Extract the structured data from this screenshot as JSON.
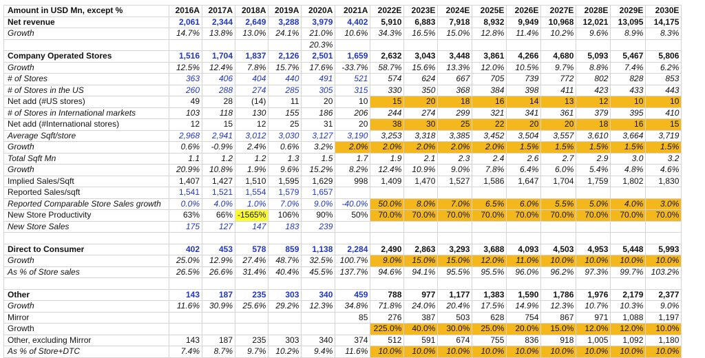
{
  "colors": {
    "estimate_fill": "#f5b81c",
    "highlight": "#ffff2e",
    "input_blue": "#1f36c8"
  },
  "header": [
    "Amount in USD Mn, except %",
    "2016A",
    "2017A",
    "2018A",
    "2019A",
    "2020A",
    "2021A",
    "2022E",
    "2023E",
    "2024E",
    "2025E",
    "2026E",
    "2027E",
    "2028E",
    "2029E",
    "2030E"
  ],
  "rows": [
    {
      "style": "bold",
      "label": "Net revenue",
      "values": [
        "2,061",
        "2,344",
        "2,649",
        "3,288",
        "3,979",
        "4,402",
        "5,910",
        "6,883",
        "7,918",
        "8,932",
        "9,949",
        "10,968",
        "12,021",
        "13,095",
        "14,175"
      ],
      "blue": [
        0,
        1,
        2,
        3,
        4,
        5
      ],
      "fill": []
    },
    {
      "style": "it",
      "label": "Growth",
      "values": [
        "14.7%",
        "13.8%",
        "13.0%",
        "24.1%",
        "21.0%",
        "10.6%",
        "34.3%",
        "16.5%",
        "15.0%",
        "12.8%",
        "11.4%",
        "10.2%",
        "9.6%",
        "8.9%",
        "8.3%"
      ],
      "blue": [],
      "fill": []
    },
    {
      "style": "it",
      "label": "",
      "values": [
        "",
        "",
        "",
        "",
        "20.3%",
        "",
        "",
        "",
        "",
        "",
        "",
        "",
        "",
        "",
        ""
      ],
      "blue": [],
      "fill": []
    },
    {
      "style": "bold",
      "label": "Company Operated Stores",
      "values": [
        "1,516",
        "1,704",
        "1,837",
        "2,126",
        "2,501",
        "1,659",
        "2,632",
        "3,043",
        "3,448",
        "3,861",
        "4,266",
        "4,680",
        "5,093",
        "5,467",
        "5,806"
      ],
      "blue": [
        0,
        1,
        2,
        3,
        4,
        5
      ],
      "fill": []
    },
    {
      "style": "it",
      "label": "Growth",
      "values": [
        "12.5%",
        "12.4%",
        "7.8%",
        "15.7%",
        "17.6%",
        "-33.7%",
        "58.7%",
        "15.6%",
        "13.3%",
        "12.0%",
        "10.5%",
        "9.7%",
        "8.8%",
        "7.4%",
        "6.2%"
      ],
      "blue": [],
      "fill": []
    },
    {
      "style": "it",
      "label": "# of Stores",
      "values": [
        "363",
        "406",
        "404",
        "440",
        "491",
        "521",
        "574",
        "624",
        "667",
        "705",
        "739",
        "772",
        "802",
        "828",
        "853"
      ],
      "blue": [
        0,
        1,
        2,
        3,
        4,
        5
      ],
      "fill": []
    },
    {
      "style": "it",
      "label": "# of Stores in the US",
      "values": [
        "260",
        "288",
        "274",
        "285",
        "305",
        "315",
        "330",
        "350",
        "368",
        "384",
        "398",
        "411",
        "423",
        "433",
        "443"
      ],
      "blue": [
        0,
        1,
        2,
        3,
        4,
        5
      ],
      "fill": []
    },
    {
      "style": "",
      "label": "Net add (#US stores)",
      "values": [
        "49",
        "28",
        "(14)",
        "11",
        "20",
        "10",
        "15",
        "20",
        "18",
        "16",
        "14",
        "13",
        "12",
        "10",
        "10"
      ],
      "blue": [],
      "fill": [
        6,
        7,
        8,
        9,
        10,
        11,
        12,
        13,
        14
      ]
    },
    {
      "style": "it",
      "label": "# of Stores in International markets",
      "values": [
        "103",
        "118",
        "130",
        "155",
        "186",
        "206",
        "244",
        "274",
        "299",
        "321",
        "341",
        "361",
        "379",
        "395",
        "410"
      ],
      "blue": [],
      "fill": []
    },
    {
      "style": "",
      "label": "Net add (#International stores)",
      "values": [
        "12",
        "15",
        "12",
        "25",
        "31",
        "20",
        "38",
        "30",
        "25",
        "22",
        "20",
        "20",
        "18",
        "16",
        "15"
      ],
      "blue": [],
      "fill": [
        6,
        7,
        8,
        9,
        10,
        11,
        12,
        13,
        14
      ]
    },
    {
      "style": "it",
      "label": "Average Sqft/store",
      "values": [
        "2,968",
        "2,941",
        "3,012",
        "3,030",
        "3,127",
        "3,190",
        "3,253",
        "3,318",
        "3,385",
        "3,452",
        "3,504",
        "3,557",
        "3,610",
        "3,664",
        "3,719"
      ],
      "blue": [
        0,
        1,
        2,
        3,
        4,
        5
      ],
      "fill": []
    },
    {
      "style": "it",
      "label": "Growth",
      "values": [
        "0.6%",
        "-0.9%",
        "2.4%",
        "0.6%",
        "3.2%",
        "2.0%",
        "2.0%",
        "2.0%",
        "2.0%",
        "2.0%",
        "1.5%",
        "1.5%",
        "1.5%",
        "1.5%",
        "1.5%"
      ],
      "blue": [],
      "fill": [
        5,
        6,
        7,
        8,
        9,
        10,
        11,
        12,
        13,
        14
      ]
    },
    {
      "style": "it",
      "label": "Total Sqft Mn",
      "values": [
        "1.1",
        "1.2",
        "1.2",
        "1.3",
        "1.5",
        "1.7",
        "1.9",
        "2.1",
        "2.3",
        "2.4",
        "2.6",
        "2.7",
        "2.9",
        "3.0",
        "3.2"
      ],
      "blue": [],
      "fill": []
    },
    {
      "style": "it",
      "label": "Growth",
      "values": [
        "20.9%",
        "10.8%",
        "1.9%",
        "9.6%",
        "15.2%",
        "8.2%",
        "12.4%",
        "10.9%",
        "9.0%",
        "7.8%",
        "6.4%",
        "6.0%",
        "5.4%",
        "4.8%",
        "4.6%"
      ],
      "blue": [],
      "fill": []
    },
    {
      "style": "",
      "label": "Implied Sales/Sqft",
      "values": [
        "1,407",
        "1,427",
        "1,510",
        "1,595",
        "1,629",
        "998",
        "1,409",
        "1,470",
        "1,527",
        "1,586",
        "1,647",
        "1,704",
        "1,759",
        "1,802",
        "1,830"
      ],
      "blue": [],
      "fill": []
    },
    {
      "style": "",
      "label": "Reported Sales/sqft",
      "values": [
        "1,541",
        "1,521",
        "1,554",
        "1,579",
        "1,657",
        "",
        "",
        "",
        "",
        "",
        "",
        "",
        "",
        "",
        ""
      ],
      "blue": [
        0,
        1,
        2,
        3,
        4
      ],
      "fill": []
    },
    {
      "style": "it",
      "label": "Reported Comparable Store Sales growth",
      "values": [
        "0.0%",
        "4.0%",
        "1.0%",
        "7.0%",
        "9.0%",
        "-40.0%",
        "50.0%",
        "8.0%",
        "7.0%",
        "6.5%",
        "6.0%",
        "5.5%",
        "5.0%",
        "4.0%",
        "3.0%"
      ],
      "blue": [
        0,
        1,
        2,
        3,
        4,
        5
      ],
      "fill": [
        6,
        7,
        8,
        9,
        10,
        11,
        12,
        13,
        14
      ]
    },
    {
      "style": "",
      "label": "New Store Productivity",
      "values": [
        "63%",
        "66%",
        "-1565%",
        "106%",
        "90%",
        "50%",
        "70.0%",
        "70.0%",
        "70.0%",
        "70.0%",
        "70.0%",
        "70.0%",
        "70.0%",
        "70.0%",
        "70.0%"
      ],
      "blue": [],
      "fill": [
        6,
        7,
        8,
        9,
        10,
        11,
        12,
        13,
        14
      ],
      "yellow": [
        2
      ]
    },
    {
      "style": "it",
      "label": "New Store Sales",
      "values": [
        "175",
        "127",
        "147",
        "183",
        "239",
        "",
        "",
        "",
        "",
        "",
        "",
        "",
        "",
        "",
        ""
      ],
      "blue": [
        0,
        1,
        2,
        3,
        4
      ],
      "fill": []
    },
    {
      "style": "blank",
      "label": "",
      "values": [
        "",
        "",
        "",
        "",
        "",
        "",
        "",
        "",
        "",
        "",
        "",
        "",
        "",
        "",
        ""
      ],
      "blue": [],
      "fill": []
    },
    {
      "style": "bold",
      "label": "Direct to Consumer",
      "values": [
        "402",
        "453",
        "578",
        "859",
        "1,138",
        "2,284",
        "2,490",
        "2,863",
        "3,293",
        "3,688",
        "4,093",
        "4,503",
        "4,953",
        "5,448",
        "5,993"
      ],
      "blue": [
        0,
        1,
        2,
        3,
        4,
        5
      ],
      "fill": []
    },
    {
      "style": "it",
      "label": "Growth",
      "values": [
        "25.0%",
        "12.9%",
        "27.4%",
        "48.7%",
        "32.5%",
        "100.7%",
        "9.0%",
        "15.0%",
        "15.0%",
        "12.0%",
        "11.0%",
        "10.0%",
        "10.0%",
        "10.0%",
        "10.0%"
      ],
      "blue": [],
      "fill": [
        6,
        7,
        8,
        9,
        10,
        11,
        12,
        13,
        14
      ]
    },
    {
      "style": "it",
      "label": "As % of Store sales",
      "values": [
        "26.5%",
        "26.6%",
        "31.4%",
        "40.4%",
        "45.5%",
        "137.7%",
        "94.6%",
        "94.1%",
        "95.5%",
        "95.5%",
        "96.0%",
        "96.2%",
        "97.3%",
        "99.7%",
        "103.2%"
      ],
      "blue": [],
      "fill": []
    },
    {
      "style": "blank",
      "label": "",
      "values": [
        "",
        "",
        "",
        "",
        "",
        "",
        "",
        "",
        "",
        "",
        "",
        "",
        "",
        "",
        ""
      ],
      "blue": [],
      "fill": []
    },
    {
      "style": "bold",
      "label": "Other",
      "values": [
        "143",
        "187",
        "235",
        "303",
        "340",
        "459",
        "788",
        "977",
        "1,177",
        "1,383",
        "1,590",
        "1,786",
        "1,976",
        "2,179",
        "2,377"
      ],
      "blue": [
        0,
        1,
        2,
        3,
        4,
        5
      ],
      "fill": []
    },
    {
      "style": "it",
      "label": "Growth",
      "values": [
        "11.6%",
        "30.9%",
        "25.6%",
        "29.2%",
        "12.3%",
        "34.8%",
        "71.8%",
        "24.0%",
        "20.4%",
        "17.5%",
        "14.9%",
        "12.3%",
        "10.7%",
        "10.3%",
        "9.0%"
      ],
      "blue": [],
      "fill": []
    },
    {
      "style": "",
      "label": "Mirror",
      "values": [
        "",
        "",
        "",
        "",
        "",
        "85",
        "276",
        "387",
        "503",
        "628",
        "754",
        "867",
        "971",
        "1,088",
        "1,197"
      ],
      "blue": [],
      "fill": []
    },
    {
      "style": "",
      "label": "Growth",
      "values": [
        "",
        "",
        "",
        "",
        "",
        "",
        "225.0%",
        "40.0%",
        "30.0%",
        "25.0%",
        "20.0%",
        "15.0%",
        "12.0%",
        "12.0%",
        "10.0%"
      ],
      "blue": [],
      "fill": [
        6,
        7,
        8,
        9,
        10,
        11,
        12,
        13,
        14
      ]
    },
    {
      "style": "",
      "label": "Other, excluding Mirror",
      "values": [
        "143",
        "187",
        "235",
        "303",
        "340",
        "374",
        "512",
        "591",
        "674",
        "755",
        "836",
        "918",
        "1,005",
        "1,092",
        "1,180"
      ],
      "blue": [],
      "fill": []
    },
    {
      "style": "it",
      "label": "As % of Store+DTC",
      "values": [
        "7.4%",
        "8.7%",
        "9.7%",
        "10.2%",
        "9.4%",
        "11.6%",
        "10.0%",
        "10.0%",
        "10.0%",
        "10.0%",
        "10.0%",
        "10.0%",
        "10.0%",
        "10.0%",
        "10.0%"
      ],
      "blue": [],
      "fill": [
        6,
        7,
        8,
        9,
        10,
        11,
        12,
        13,
        14
      ]
    }
  ]
}
